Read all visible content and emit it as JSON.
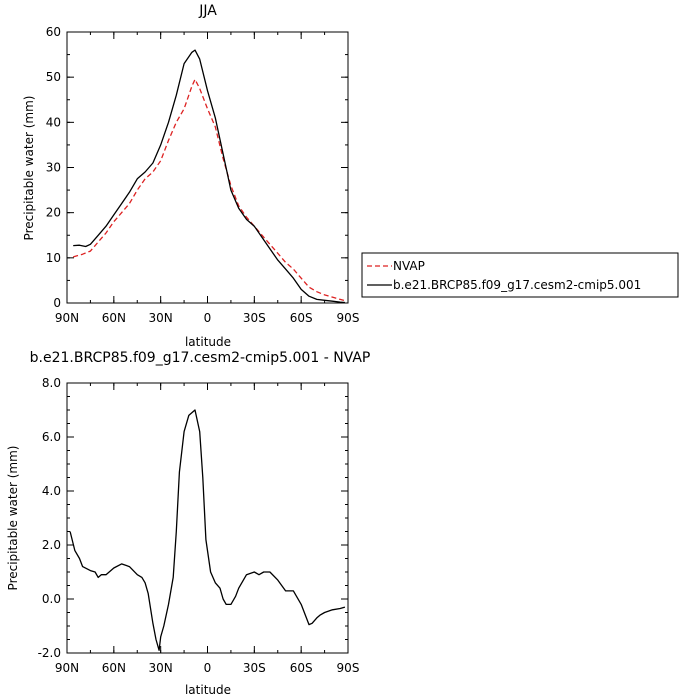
{
  "chart_data": [
    {
      "type": "line",
      "title": "JJA",
      "xlabel": "latitude",
      "ylabel": "Precipitable water (mm)",
      "xlim": [
        -90,
        90
      ],
      "ylim": [
        0,
        60
      ],
      "x_tick_values": [
        -90,
        -60,
        -30,
        0,
        30,
        60,
        90
      ],
      "x_tick_labels": [
        "90N",
        "60N",
        "30N",
        "0",
        "30S",
        "60S",
        "90S"
      ],
      "y_tick_values": [
        0,
        10,
        20,
        30,
        40,
        50,
        60
      ],
      "y_tick_labels": [
        "0",
        "10",
        "20",
        "30",
        "40",
        "50",
        "60"
      ],
      "legend_position": "right",
      "series": [
        {
          "name": "NVAP",
          "color": "#dd2222",
          "style": "dashed",
          "x": [
            -86,
            -80,
            -75,
            -70,
            -65,
            -60,
            -55,
            -50,
            -45,
            -40,
            -35,
            -30,
            -25,
            -20,
            -15,
            -10,
            -8,
            -5,
            0,
            5,
            10,
            15,
            20,
            25,
            30,
            35,
            40,
            45,
            50,
            55,
            60,
            65,
            70,
            75,
            80,
            85,
            88
          ],
          "y": [
            10.2,
            10.8,
            11.5,
            13.5,
            15.5,
            18,
            20,
            22,
            25,
            27.5,
            29,
            31.5,
            36,
            40,
            43,
            48,
            49.5,
            47.5,
            43,
            39,
            32,
            26,
            21.5,
            19,
            17,
            15,
            13,
            11,
            9,
            7.5,
            5.5,
            3.5,
            2.5,
            1.8,
            1.3,
            0.8,
            0.5
          ]
        },
        {
          "name": "b.e21.BRCP85.f09_g17.cesm2-cmip5.001",
          "color": "#000000",
          "style": "solid",
          "x": [
            -86,
            -82,
            -78,
            -75,
            -70,
            -65,
            -60,
            -55,
            -50,
            -45,
            -40,
            -35,
            -30,
            -25,
            -20,
            -15,
            -10,
            -8,
            -5,
            0,
            5,
            10,
            15,
            20,
            25,
            30,
            35,
            40,
            45,
            50,
            55,
            60,
            65,
            70,
            75,
            80,
            85,
            88
          ],
          "y": [
            12.7,
            12.8,
            12.5,
            13,
            15,
            17,
            19.5,
            22,
            24.5,
            27.5,
            29,
            31,
            35,
            40,
            46,
            53,
            55.5,
            56,
            54,
            47,
            41,
            33,
            25,
            21,
            18.5,
            17,
            14.5,
            12,
            9.5,
            7.5,
            5.5,
            3,
            1.5,
            0.8,
            0.6,
            0.4,
            0.2,
            0.1
          ]
        }
      ]
    },
    {
      "type": "line",
      "title": "b.e21.BRCP85.f09_g17.cesm2-cmip5.001 - NVAP",
      "xlabel": "latitude",
      "ylabel": "Precipitable water (mm)",
      "xlim": [
        -90,
        90
      ],
      "ylim": [
        -2,
        8
      ],
      "x_tick_values": [
        -90,
        -60,
        -30,
        0,
        30,
        60,
        90
      ],
      "x_tick_labels": [
        "90N",
        "60N",
        "30N",
        "0",
        "30S",
        "60S",
        "90S"
      ],
      "y_tick_values": [
        -2,
        0,
        2,
        4,
        6,
        8
      ],
      "y_tick_labels": [
        "-2.0",
        "0.0",
        "2.0",
        "4.0",
        "6.0",
        "8.0"
      ],
      "series": [
        {
          "color": "#000000",
          "style": "solid",
          "x": [
            -88,
            -85,
            -82,
            -80,
            -75,
            -72,
            -70,
            -68,
            -65,
            -60,
            -55,
            -50,
            -45,
            -42,
            -40,
            -38,
            -35,
            -33,
            -31,
            -30,
            -28,
            -25,
            -22,
            -20,
            -18,
            -15,
            -12,
            -8,
            -5,
            -3,
            -1,
            2,
            5,
            8,
            10,
            12,
            15,
            18,
            20,
            25,
            30,
            33,
            36,
            40,
            45,
            50,
            55,
            60,
            65,
            67,
            70,
            72,
            75,
            80,
            85,
            88
          ],
          "y": [
            2.5,
            1.8,
            1.5,
            1.2,
            1.05,
            1.0,
            0.8,
            0.9,
            0.9,
            1.15,
            1.3,
            1.2,
            0.9,
            0.8,
            0.6,
            0.2,
            -0.9,
            -1.5,
            -1.9,
            -1.4,
            -1.0,
            -0.2,
            0.8,
            2.5,
            4.7,
            6.2,
            6.8,
            7.0,
            6.2,
            4.5,
            2.2,
            1.0,
            0.6,
            0.4,
            0.0,
            -0.2,
            -0.2,
            0.1,
            0.4,
            0.9,
            1.0,
            0.9,
            1.0,
            1.0,
            0.7,
            0.3,
            0.3,
            -0.2,
            -0.95,
            -0.9,
            -0.7,
            -0.6,
            -0.5,
            -0.4,
            -0.35,
            -0.3
          ]
        }
      ]
    }
  ]
}
